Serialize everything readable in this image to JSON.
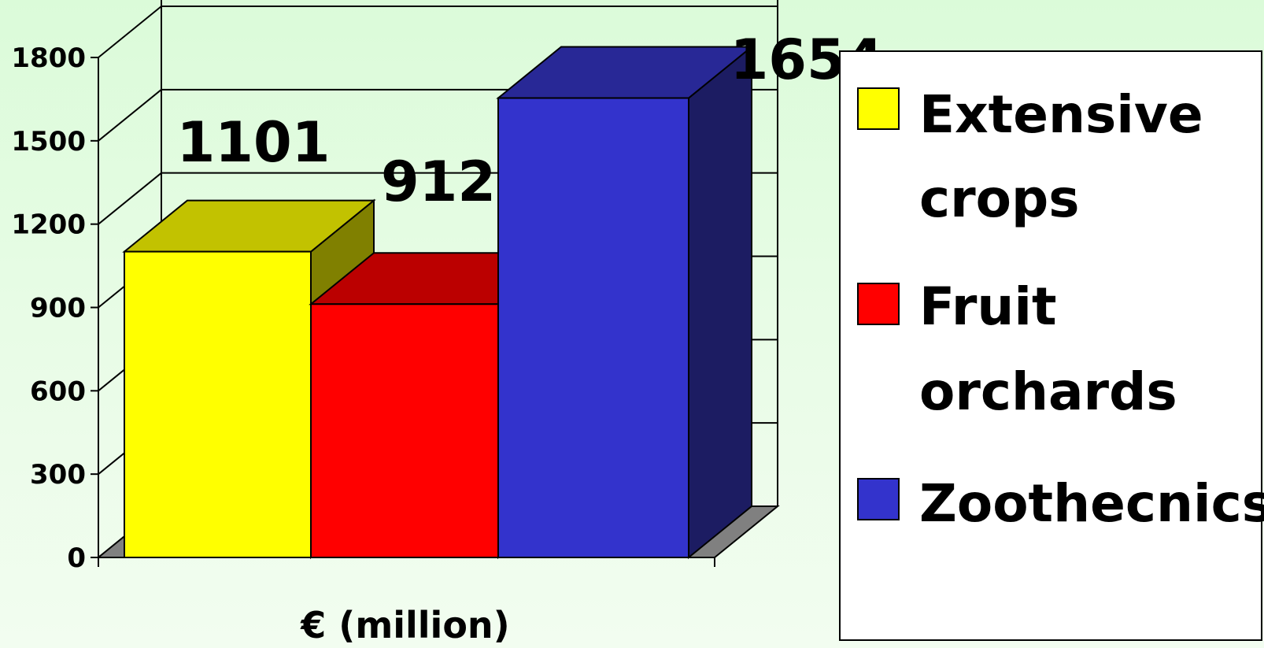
{
  "chart_data": {
    "type": "bar",
    "style": "3d",
    "categories": [
      "Extensive crops",
      "Fruit orchards",
      "Zoothecnics"
    ],
    "values": [
      1101,
      912,
      1654
    ],
    "data_labels": [
      "1101",
      "912",
      "1654"
    ],
    "title": "",
    "xlabel": "€ (million)",
    "ylabel": "",
    "ylim": [
      0,
      1800
    ],
    "yticks": [
      0,
      300,
      600,
      900,
      1200,
      1500,
      1800
    ],
    "grid": true,
    "legend_position": "right",
    "legend": [
      {
        "lines": [
          "Extensive",
          "crops"
        ]
      },
      {
        "lines": [
          "Fruit",
          "orchards"
        ]
      },
      {
        "lines": [
          "Zoothecnics"
        ]
      }
    ],
    "colors": {
      "bar_front": [
        "#ffff00",
        "#ff0000",
        "#3333cc"
      ],
      "bar_top": [
        "#c2c200",
        "#bb0000",
        "#282896"
      ],
      "bar_side": [
        "#808000",
        "#880000",
        "#1c1c62"
      ],
      "floor": "#808080",
      "background": "#ddfbda"
    }
  }
}
